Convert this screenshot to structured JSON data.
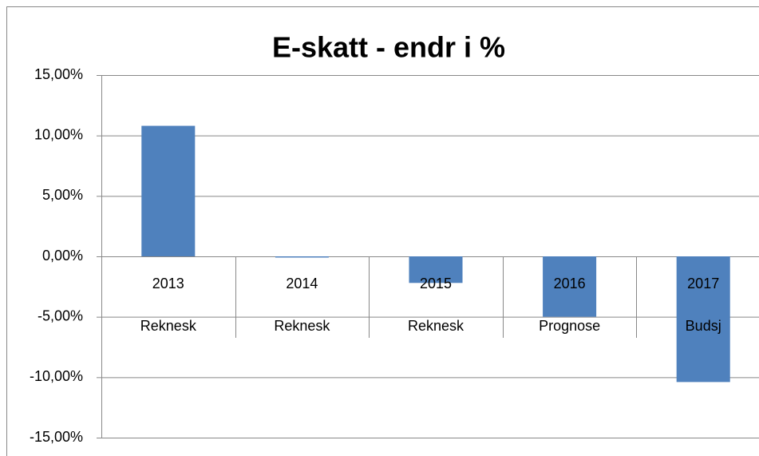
{
  "chart_data": {
    "type": "bar",
    "title": "E-skatt - endr i %",
    "categories": [
      [
        "2013",
        "Reknesk"
      ],
      [
        "2014",
        "Reknesk"
      ],
      [
        "2015",
        "Reknesk"
      ],
      [
        "2016",
        "Prognose"
      ],
      [
        "2017",
        "Budsj"
      ]
    ],
    "values": [
      10.8,
      -0.1,
      -2.2,
      -5.0,
      -10.4
    ],
    "color": "#4f81bd",
    "ylim": [
      -15,
      15
    ],
    "yticks": [
      {
        "value": -15,
        "label": "-15,00%"
      },
      {
        "value": -10,
        "label": "-10,00%"
      },
      {
        "value": -5,
        "label": "-5,00%"
      },
      {
        "value": 0,
        "label": "0,00%"
      },
      {
        "value": 5,
        "label": "5,00%"
      },
      {
        "value": 10,
        "label": "10,00%"
      },
      {
        "value": 15,
        "label": "15,00%"
      }
    ],
    "grid": true
  }
}
